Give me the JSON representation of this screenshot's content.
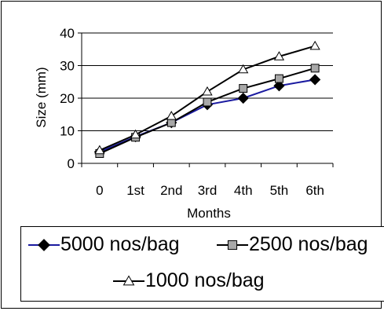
{
  "chart_data": {
    "type": "line",
    "title": "",
    "xlabel": "Months",
    "ylabel": "Size (mm)",
    "categories": [
      "0",
      "1st",
      "2nd",
      "3rd",
      "4th",
      "5th",
      "6th"
    ],
    "ylim": [
      0,
      40
    ],
    "yticks": [
      "0",
      "10",
      "20",
      "30",
      "40"
    ],
    "grid": "horizontal",
    "legend_position": "bottom",
    "series": [
      {
        "name": "5000 nos/bag",
        "marker": "diamond",
        "color": "#1a1aa0",
        "marker_color": "#000000",
        "values": [
          3.5,
          8.2,
          12.5,
          18.0,
          20.0,
          23.8,
          25.7
        ]
      },
      {
        "name": "2500 nos/bag",
        "marker": "square",
        "color": "#000000",
        "marker_color": "#a8a8a8",
        "values": [
          3.0,
          8.0,
          12.5,
          18.8,
          23.0,
          26.0,
          29.2
        ]
      },
      {
        "name": "1000 nos/bag",
        "marker": "triangle",
        "color": "#000000",
        "marker_color": "#ffffff",
        "values": [
          4.0,
          8.8,
          14.5,
          22.0,
          28.8,
          32.8,
          36.0
        ]
      }
    ]
  }
}
